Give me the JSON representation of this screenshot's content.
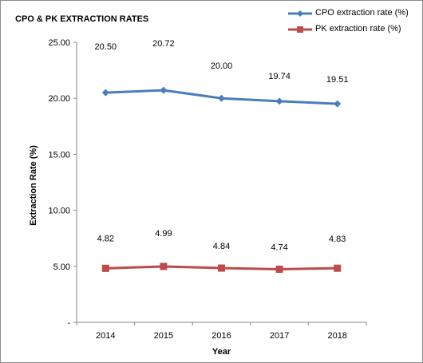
{
  "chart_data": {
    "type": "line",
    "title": "CPO & PK EXTRACTION  RATES",
    "xlabel": "Year",
    "ylabel": "Extraction Rate (%)",
    "categories": [
      "2014",
      "2015",
      "2016",
      "2017",
      "2018"
    ],
    "ylim": [
      0,
      25
    ],
    "yticks": [
      0,
      5,
      10,
      15,
      20,
      25
    ],
    "ytick_labels": [
      "-",
      "5.00",
      "10.00",
      "15.00",
      "20.00",
      "25.00"
    ],
    "series": [
      {
        "name": "CPO extraction rate (%)",
        "values": [
          20.5,
          20.72,
          20.0,
          19.74,
          19.51
        ],
        "data_labels": [
          "20.50",
          "20.72",
          "20.00",
          "19.74",
          "19.51"
        ],
        "color": "#4A7EBB",
        "marker": "diamond"
      },
      {
        "name": "PK extraction rate (%)",
        "values": [
          4.82,
          4.99,
          4.84,
          4.74,
          4.83
        ],
        "data_labels": [
          "4.82",
          "4.99",
          "4.84",
          "4.74",
          "4.83"
        ],
        "color": "#BE4B48",
        "marker": "square"
      }
    ],
    "grid": false,
    "legend_position": "top-right"
  }
}
